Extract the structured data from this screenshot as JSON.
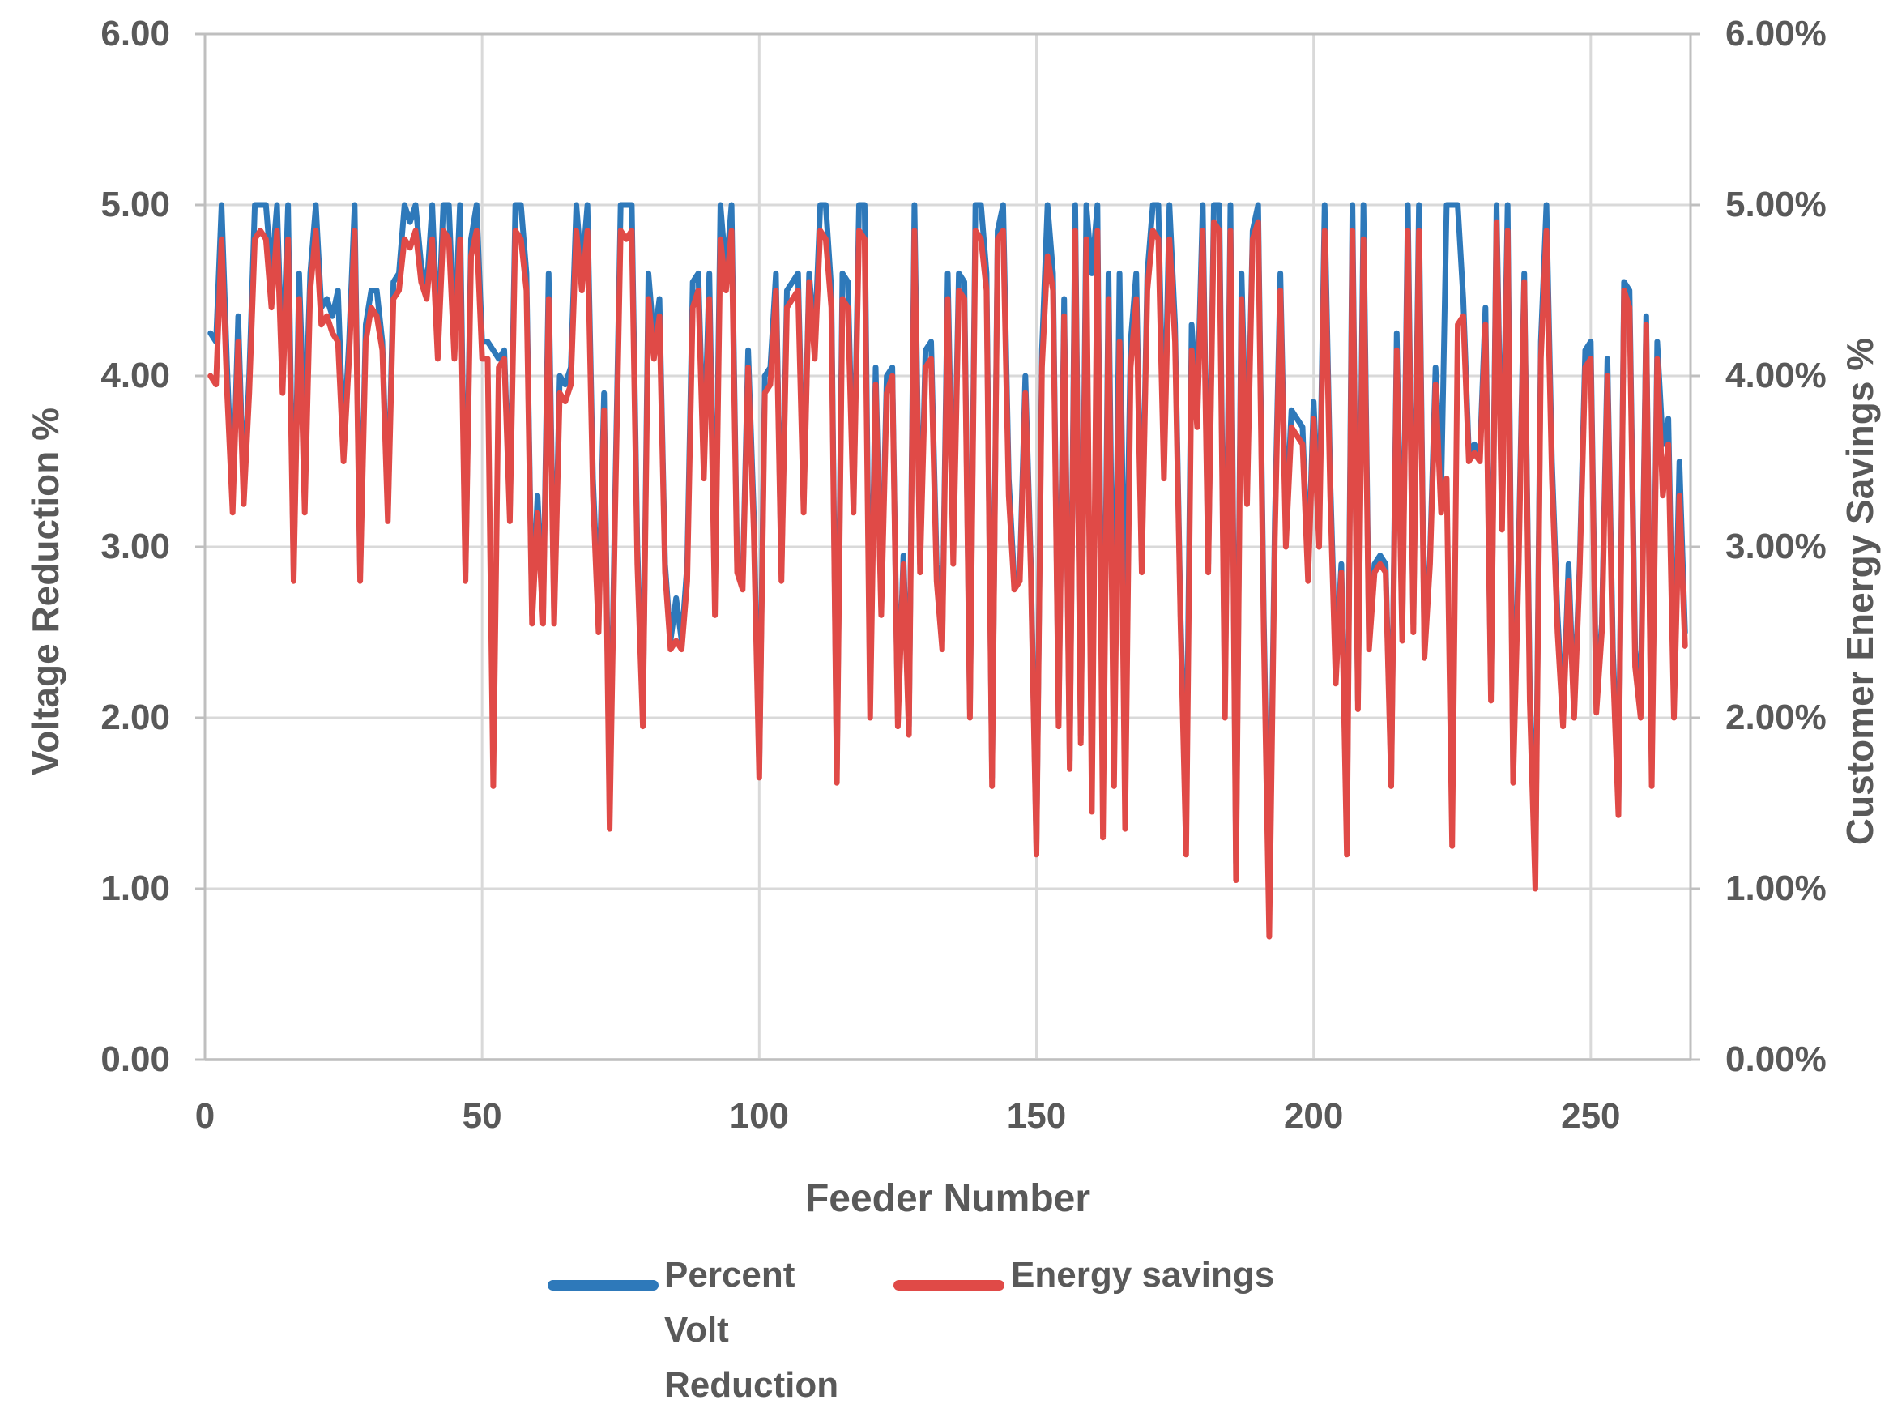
{
  "chart_data": {
    "type": "line",
    "title": "",
    "xlabel": "Feeder Number",
    "ylabel_left": "Voltage Reduction %",
    "ylabel_right": "Customer Energy Savings %",
    "x_start": 1,
    "n_points": 267,
    "xlim": [
      0,
      268
    ],
    "x_ticks": [
      0,
      50,
      100,
      150,
      200,
      250
    ],
    "ylim_left": [
      0,
      6
    ],
    "ylim_right_percent": [
      0,
      6
    ],
    "left_tick_labels": [
      "0.00",
      "1.00",
      "2.00",
      "3.00",
      "4.00",
      "5.00",
      "6.00"
    ],
    "right_tick_labels": [
      "0.00%",
      "1.00%",
      "2.00%",
      "3.00%",
      "4.00%",
      "5.00%",
      "6.00%"
    ],
    "grid": true,
    "grid_color": "#d9d9d9",
    "border_color": "#bfbfbf",
    "legend_position": "bottom",
    "series": [
      {
        "name": "Percent Volt Reduction",
        "color": "#2e79ba",
        "axis": "left",
        "values": [
          4.25,
          4.2,
          5.0,
          4.05,
          3.25,
          4.35,
          3.3,
          4.0,
          5.0,
          5.0,
          5.0,
          4.6,
          5.0,
          4.0,
          5.0,
          2.85,
          4.6,
          3.6,
          4.6,
          5.0,
          4.4,
          4.45,
          4.35,
          4.5,
          3.6,
          4.2,
          5.0,
          2.85,
          4.3,
          4.5,
          4.5,
          4.2,
          3.2,
          4.55,
          4.6,
          5.0,
          4.9,
          5.0,
          4.65,
          4.5,
          5.0,
          4.2,
          5.0,
          5.0,
          4.2,
          5.0,
          2.85,
          4.8,
          5.0,
          4.2,
          4.2,
          4.15,
          4.1,
          4.15,
          3.2,
          5.0,
          5.0,
          4.6,
          2.6,
          3.3,
          2.6,
          4.6,
          2.6,
          4.0,
          3.95,
          4.05,
          5.0,
          4.6,
          5.0,
          3.4,
          2.6,
          3.9,
          1.45,
          3.3,
          5.0,
          5.0,
          5.0,
          3.0,
          2.0,
          4.6,
          4.2,
          4.45,
          2.9,
          2.45,
          2.7,
          2.45,
          2.9,
          4.55,
          4.6,
          3.5,
          4.6,
          2.7,
          5.0,
          4.6,
          5.0,
          2.9,
          2.8,
          4.15,
          3.2,
          1.7,
          4.0,
          4.05,
          4.6,
          2.85,
          4.5,
          4.55,
          4.6,
          3.25,
          4.6,
          4.2,
          5.0,
          5.0,
          4.5,
          1.7,
          4.6,
          4.55,
          3.25,
          5.0,
          5.0,
          2.1,
          4.05,
          2.65,
          4.0,
          4.05,
          2.0,
          2.95,
          1.95,
          5.0,
          2.9,
          4.15,
          4.2,
          2.9,
          2.45,
          4.6,
          3.0,
          4.6,
          4.55,
          2.05,
          5.0,
          5.0,
          4.6,
          1.65,
          4.85,
          5.0,
          3.4,
          2.8,
          2.85,
          4.0,
          2.9,
          1.25,
          4.15,
          5.0,
          4.6,
          2.0,
          4.45,
          1.75,
          5.0,
          1.9,
          5.0,
          4.6,
          5.0,
          1.5,
          4.6,
          2.0,
          4.6,
          2.3,
          4.2,
          4.6,
          2.9,
          4.6,
          5.0,
          5.0,
          3.5,
          5.0,
          4.3,
          2.6,
          1.45,
          4.3,
          3.8,
          5.0,
          2.9,
          5.0,
          5.0,
          2.1,
          5.0,
          1.15,
          4.6,
          3.35,
          4.85,
          5.0,
          2.6,
          0.85,
          3.15,
          4.6,
          3.1,
          3.8,
          3.75,
          3.7,
          2.85,
          3.85,
          3.1,
          5.0,
          3.4,
          2.3,
          2.9,
          1.3,
          5.0,
          2.1,
          5.0,
          2.45,
          2.9,
          2.95,
          2.9,
          1.65,
          4.25,
          2.5,
          5.0,
          2.55,
          5.0,
          2.4,
          2.95,
          4.05,
          3.3,
          5.0,
          5.0,
          5.0,
          4.45,
          3.55,
          3.6,
          3.55,
          4.4,
          2.15,
          5.0,
          3.2,
          5.0,
          1.7,
          3.0,
          4.6,
          2.2,
          1.1,
          4.2,
          5.0,
          3.5,
          2.6,
          2.0,
          2.9,
          2.05,
          2.9,
          4.15,
          4.2,
          2.1,
          2.55,
          4.1,
          2.4,
          1.5,
          4.55,
          4.5,
          2.4,
          2.1,
          4.35,
          1.7,
          4.2,
          3.6,
          3.75,
          2.1,
          3.5,
          2.5
        ]
      },
      {
        "name": "Energy savings",
        "color": "#e04a47",
        "axis": "right",
        "values": [
          4.0,
          3.95,
          4.8,
          3.9,
          3.2,
          4.2,
          3.25,
          3.9,
          4.8,
          4.85,
          4.8,
          4.4,
          4.85,
          3.9,
          4.8,
          2.8,
          4.45,
          3.2,
          4.5,
          4.85,
          4.3,
          4.35,
          4.25,
          4.2,
          3.5,
          4.1,
          4.85,
          2.8,
          4.2,
          4.4,
          4.35,
          4.15,
          3.15,
          4.45,
          4.5,
          4.8,
          4.75,
          4.85,
          4.55,
          4.45,
          4.8,
          4.1,
          4.85,
          4.8,
          4.1,
          4.8,
          2.8,
          4.7,
          4.85,
          4.1,
          4.1,
          1.6,
          4.05,
          4.1,
          3.15,
          4.85,
          4.8,
          4.5,
          2.55,
          3.2,
          2.55,
          4.45,
          2.55,
          3.9,
          3.85,
          3.95,
          4.85,
          4.5,
          4.85,
          3.3,
          2.5,
          3.8,
          1.35,
          3.2,
          4.85,
          4.8,
          4.85,
          2.9,
          1.95,
          4.45,
          4.1,
          4.35,
          2.85,
          2.4,
          2.45,
          2.4,
          2.8,
          4.4,
          4.5,
          3.4,
          4.45,
          2.6,
          4.8,
          4.5,
          4.85,
          2.85,
          2.75,
          4.05,
          3.1,
          1.65,
          3.9,
          3.95,
          4.5,
          2.8,
          4.4,
          4.45,
          4.5,
          3.2,
          4.55,
          4.1,
          4.85,
          4.8,
          4.4,
          1.62,
          4.45,
          4.4,
          3.2,
          4.85,
          4.8,
          2.0,
          3.95,
          2.6,
          3.9,
          4.0,
          1.95,
          2.9,
          1.9,
          4.85,
          2.85,
          4.05,
          4.1,
          2.8,
          2.4,
          4.45,
          2.9,
          4.5,
          4.45,
          2.0,
          4.85,
          4.8,
          4.5,
          1.6,
          4.8,
          4.85,
          3.3,
          2.75,
          2.8,
          3.9,
          2.85,
          1.2,
          4.05,
          4.7,
          4.5,
          1.95,
          4.35,
          1.7,
          4.85,
          1.85,
          4.8,
          1.45,
          4.85,
          1.3,
          4.45,
          1.6,
          4.2,
          1.35,
          4.05,
          4.45,
          2.85,
          4.5,
          4.85,
          4.8,
          3.4,
          4.8,
          4.2,
          2.55,
          1.2,
          4.15,
          3.7,
          4.85,
          2.85,
          4.9,
          4.85,
          2.0,
          4.85,
          1.05,
          4.45,
          3.25,
          4.8,
          4.9,
          2.5,
          0.72,
          3.05,
          4.5,
          3.0,
          3.7,
          3.65,
          3.6,
          2.8,
          3.75,
          3.0,
          4.85,
          3.3,
          2.2,
          2.85,
          1.2,
          4.85,
          2.05,
          4.8,
          2.4,
          2.85,
          2.9,
          2.85,
          1.6,
          4.15,
          2.45,
          4.85,
          2.5,
          4.85,
          2.35,
          2.9,
          3.95,
          3.2,
          3.4,
          1.25,
          4.3,
          4.35,
          3.5,
          3.55,
          3.5,
          4.3,
          2.1,
          4.9,
          3.1,
          4.85,
          1.62,
          2.9,
          4.55,
          2.1,
          1.0,
          4.1,
          4.85,
          3.4,
          2.5,
          1.95,
          2.8,
          2.0,
          2.85,
          4.05,
          4.1,
          2.03,
          2.5,
          4.0,
          2.3,
          1.43,
          4.5,
          4.4,
          2.3,
          2.0,
          4.3,
          1.6,
          4.1,
          3.3,
          3.6,
          2.0,
          3.3,
          2.42
        ]
      }
    ],
    "legend": [
      {
        "label": "Percent Volt Reduction",
        "color": "#2e79ba"
      },
      {
        "label": "Energy savings",
        "color": "#e04a47"
      }
    ]
  }
}
